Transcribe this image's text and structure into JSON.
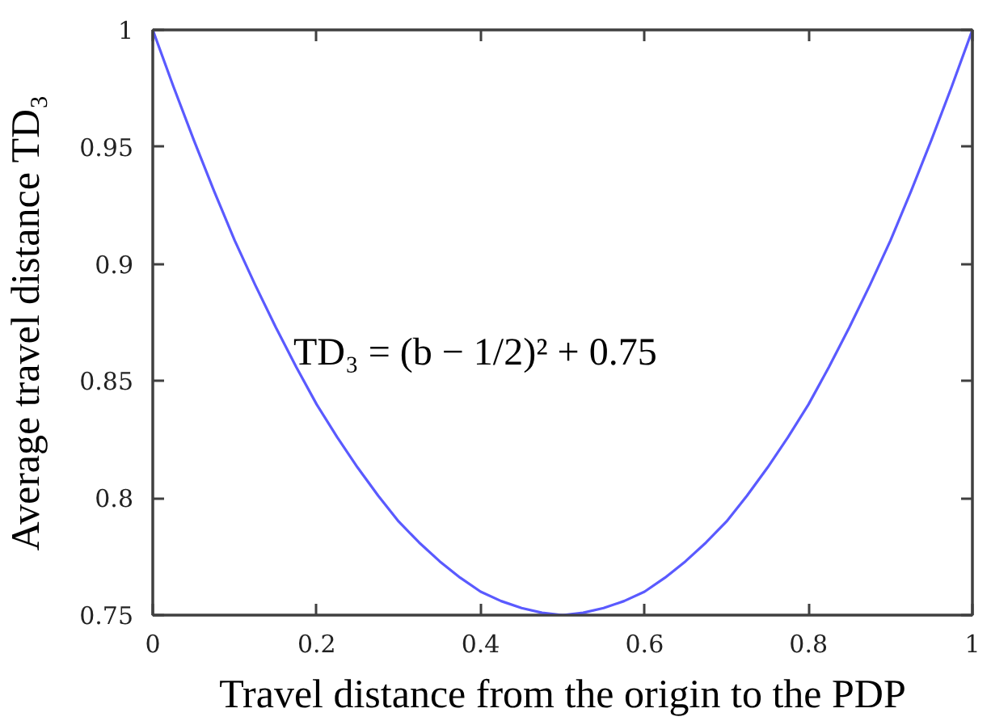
{
  "chart_data": {
    "type": "line",
    "xlabel": "Travel distance from the origin to the PDP",
    "ylabel": "Average travel distance TD₃",
    "annotations": [
      "TD₃ = (b − 1/2)² + 0.75"
    ],
    "x": [
      0,
      0.025,
      0.05,
      0.075,
      0.1,
      0.125,
      0.15,
      0.175,
      0.2,
      0.225,
      0.25,
      0.275,
      0.3,
      0.325,
      0.35,
      0.375,
      0.4,
      0.425,
      0.45,
      0.475,
      0.5,
      0.525,
      0.55,
      0.575,
      0.6,
      0.625,
      0.65,
      0.675,
      0.7,
      0.725,
      0.75,
      0.775,
      0.8,
      0.825,
      0.85,
      0.875,
      0.9,
      0.925,
      0.95,
      0.975,
      1
    ],
    "series": [
      {
        "color": "#5a5aff",
        "values": [
          1,
          0.976,
          0.953,
          0.931,
          0.91,
          0.891,
          0.873,
          0.856,
          0.84,
          0.826,
          0.813,
          0.801,
          0.79,
          0.781,
          0.773,
          0.766,
          0.76,
          0.756,
          0.753,
          0.751,
          0.75,
          0.751,
          0.753,
          0.756,
          0.76,
          0.766,
          0.773,
          0.781,
          0.79,
          0.801,
          0.813,
          0.826,
          0.84,
          0.856,
          0.873,
          0.891,
          0.91,
          0.931,
          0.953,
          0.976,
          1
        ]
      }
    ],
    "xlim": [
      0,
      1
    ],
    "ylim": [
      0.75,
      1
    ],
    "xticks": [
      0,
      0.2,
      0.4,
      0.6,
      0.8,
      1
    ],
    "yticks": [
      0.75,
      0.8,
      0.85,
      0.9,
      0.95,
      1
    ],
    "grid": false,
    "marker": "none",
    "line_style": "solid"
  }
}
